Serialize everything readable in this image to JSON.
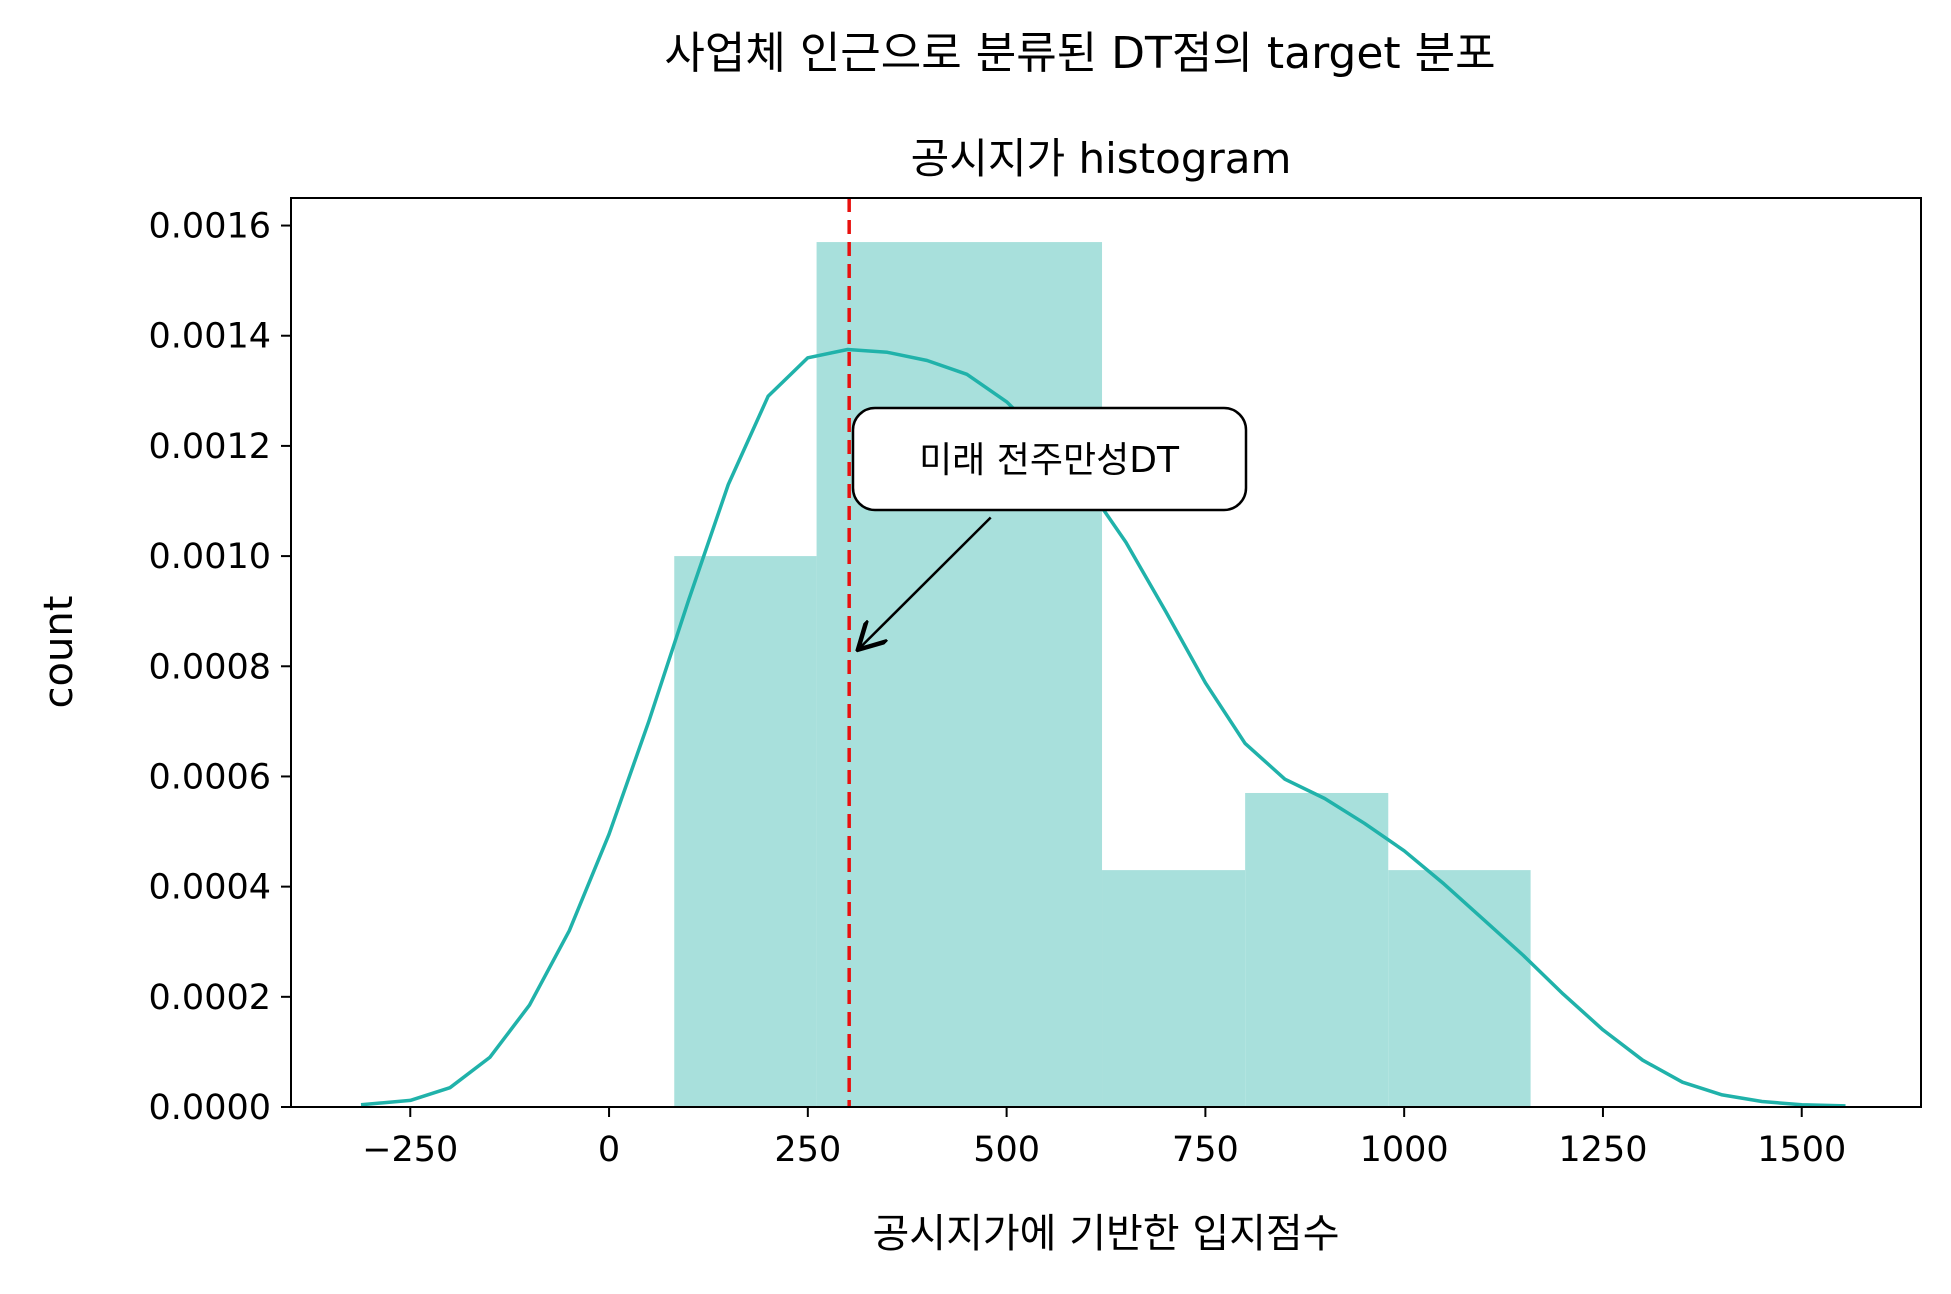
{
  "chart_data": {
    "type": "bar",
    "suptitle": "사업체 인근으로 분류된 DT점의 target 분포",
    "title": "공시지가 histogram",
    "xlabel": "공시지가에 기반한 입지점수",
    "ylabel": "count",
    "xlim": [
      -400,
      1650
    ],
    "ylim": [
      0,
      0.00165
    ],
    "xticks": [
      -250,
      0,
      250,
      500,
      750,
      1000,
      1250,
      1500
    ],
    "xtick_labels": [
      "−250",
      "0",
      "250",
      "500",
      "750",
      "1000",
      "1250",
      "1500"
    ],
    "yticks": [
      0,
      0.0002,
      0.0004,
      0.0006,
      0.0008,
      0.001,
      0.0012,
      0.0014,
      0.0016
    ],
    "ytick_labels": [
      "0.0000",
      "0.0002",
      "0.0004",
      "0.0006",
      "0.0008",
      "0.0010",
      "0.0012",
      "0.0014",
      "0.0016"
    ],
    "grid": false,
    "histogram": {
      "bins": [
        {
          "x0": 82,
          "x1": 261,
          "value": 0.001
        },
        {
          "x0": 261,
          "x1": 620,
          "value": 0.00157
        },
        {
          "x0": 620,
          "x1": 800,
          "value": 0.00043
        },
        {
          "x0": 800,
          "x1": 980,
          "value": 0.00057
        },
        {
          "x0": 980,
          "x1": 1159,
          "value": 0.00043
        }
      ],
      "color": "#a8e0dc"
    },
    "kde": {
      "color": "#20b2aa",
      "points": [
        [
          -312,
          4e-06
        ],
        [
          -250,
          1.2e-05
        ],
        [
          -200,
          3.5e-05
        ],
        [
          -150,
          9e-05
        ],
        [
          -100,
          0.000185
        ],
        [
          -50,
          0.00032
        ],
        [
          0,
          0.000495
        ],
        [
          50,
          0.0007
        ],
        [
          100,
          0.00092
        ],
        [
          150,
          0.00113
        ],
        [
          200,
          0.00129
        ],
        [
          250,
          0.00136
        ],
        [
          300,
          0.001375
        ],
        [
          350,
          0.00137
        ],
        [
          400,
          0.001355
        ],
        [
          450,
          0.00133
        ],
        [
          500,
          0.00128
        ],
        [
          550,
          0.00121
        ],
        [
          600,
          0.00113
        ],
        [
          650,
          0.001025
        ],
        [
          700,
          0.0009
        ],
        [
          750,
          0.00077
        ],
        [
          800,
          0.00066
        ],
        [
          850,
          0.000595
        ],
        [
          900,
          0.00056
        ],
        [
          950,
          0.000515
        ],
        [
          1000,
          0.000465
        ],
        [
          1050,
          0.000405
        ],
        [
          1100,
          0.00034
        ],
        [
          1150,
          0.000275
        ],
        [
          1200,
          0.000205
        ],
        [
          1250,
          0.00014
        ],
        [
          1300,
          8.5e-05
        ],
        [
          1350,
          4.5e-05
        ],
        [
          1400,
          2.2e-05
        ],
        [
          1450,
          1e-05
        ],
        [
          1500,
          4e-06
        ],
        [
          1555,
          2e-06
        ]
      ]
    },
    "vline": {
      "x": 302,
      "color": "#e8100e",
      "style": "dashed"
    },
    "annotation": {
      "text": "미래 전주만성DT",
      "text_pos": [
        550,
        0.00118
      ],
      "arrow_tail": [
        480,
        0.00107
      ],
      "arrow_head": [
        313,
        0.00083
      ]
    }
  }
}
